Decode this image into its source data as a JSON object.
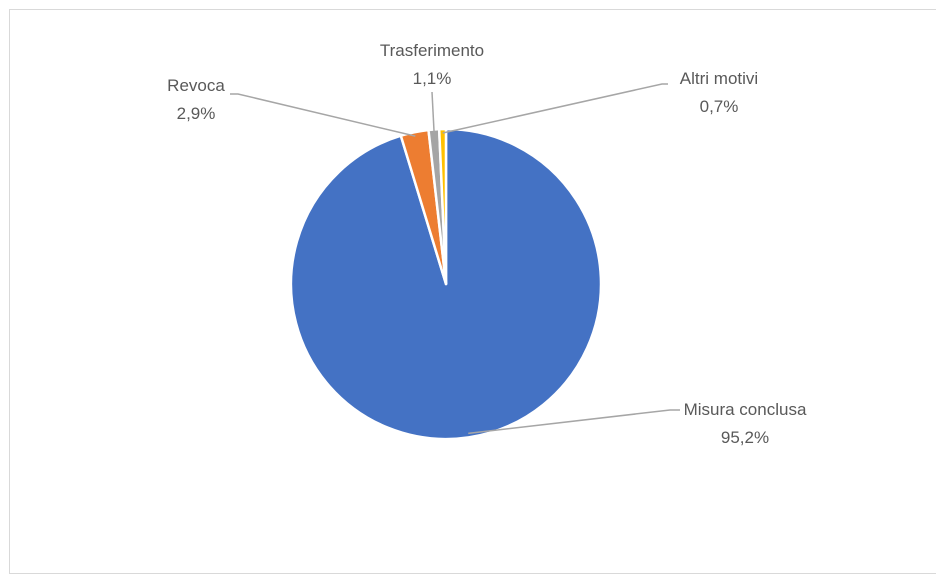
{
  "chart_data": {
    "type": "pie",
    "title": "",
    "slices": [
      {
        "label": "Misura conclusa",
        "value": 95.2,
        "value_label": "95,2%",
        "color": "#4472C4"
      },
      {
        "label": "Revoca",
        "value": 2.9,
        "value_label": "2,9%",
        "color": "#ED7D31"
      },
      {
        "label": "Trasferimento",
        "value": 1.1,
        "value_label": "1,1%",
        "color": "#A5A5A5"
      },
      {
        "label": "Altri motivi",
        "value": 0.7,
        "value_label": "0,7%",
        "color": "#FFC000"
      }
    ],
    "legend": "none",
    "data_labels": "outside-with-leader-lines"
  }
}
